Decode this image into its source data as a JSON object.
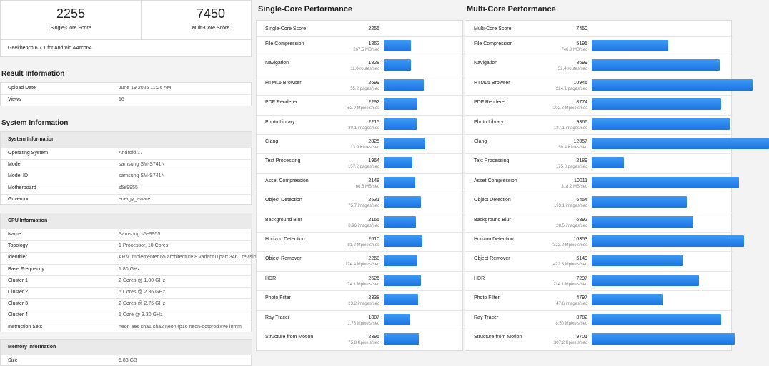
{
  "summary": {
    "single_core_score": 2255,
    "single_core_label": "Single-Core Score",
    "multi_core_score": 7450,
    "multi_core_label": "Multi-Core Score",
    "version": "Geekbench 6.7.1 for Android AArch64"
  },
  "result_information": {
    "title": "Result Information",
    "rows": [
      [
        "Upload Date",
        "June 19 2026 11:26 AM"
      ],
      [
        "Views",
        16
      ]
    ]
  },
  "system_information": {
    "title": "System Information",
    "tables": [
      {
        "title": "System Information",
        "rows": [
          [
            "Operating System",
            "Android 17"
          ],
          [
            "Model",
            "samsung SM-S741N"
          ],
          [
            "Model ID",
            "samsung SM-S741N"
          ],
          [
            "Motherboard",
            "s5e9955"
          ],
          [
            "Governor",
            "energy_aware"
          ]
        ]
      },
      {
        "title": "CPU Information",
        "rows": [
          [
            "Name",
            "Samsung s5e9955"
          ],
          [
            "Topology",
            "1 Processor, 10 Cores"
          ],
          [
            "Identifier",
            "ARM implementer 65 architecture 8 variant 0 part 3461 revision"
          ],
          [
            "Base Frequency",
            "1.80 GHz"
          ],
          [
            "Cluster 1",
            "2 Cores @ 1.80 GHz"
          ],
          [
            "Cluster 2",
            "5 Cores @ 2.36 GHz"
          ],
          [
            "Cluster 3",
            "2 Cores @ 2.75 GHz"
          ],
          [
            "Cluster 4",
            "1 Core @ 3.30 GHz"
          ],
          [
            "Instruction Sets",
            "neon aes sha1 sha2 neon-fp16 neon-dotprod sve i8mm"
          ]
        ]
      },
      {
        "title": "Memory Information",
        "rows": [
          [
            "Size",
            "6.83 GB"
          ]
        ]
      }
    ]
  },
  "single_core": {
    "title": "Single-Core Performance",
    "score_label": "Single-Core Score",
    "score": 2255,
    "tests": [
      {
        "name": "File Compression",
        "score": 1862,
        "rate": "267.5 MB/sec"
      },
      {
        "name": "Navigation",
        "score": 1828,
        "rate": "11.0 routes/sec"
      },
      {
        "name": "HTML5 Browser",
        "score": 2699,
        "rate": "55.2 pages/sec"
      },
      {
        "name": "PDF Renderer",
        "score": 2292,
        "rate": "52.9 Mpixels/sec"
      },
      {
        "name": "Photo Library",
        "score": 2215,
        "rate": "30.1 images/sec"
      },
      {
        "name": "Clang",
        "score": 2825,
        "rate": "13.9 Klines/sec"
      },
      {
        "name": "Text Processing",
        "score": 1964,
        "rate": "157.2 pages/sec"
      },
      {
        "name": "Asset Compression",
        "score": 2148,
        "rate": "66.6 MB/sec"
      },
      {
        "name": "Object Detection",
        "score": 2531,
        "rate": "75.7 images/sec"
      },
      {
        "name": "Background Blur",
        "score": 2165,
        "rate": "8.96 images/sec"
      },
      {
        "name": "Horizon Detection",
        "score": 2610,
        "rate": "81.2 Mpixels/sec"
      },
      {
        "name": "Object Remover",
        "score": 2268,
        "rate": "174.4 Mpixels/sec"
      },
      {
        "name": "HDR",
        "score": 2526,
        "rate": "74.1 Mpixels/sec"
      },
      {
        "name": "Photo Filter",
        "score": 2338,
        "rate": "23.2 images/sec"
      },
      {
        "name": "Ray Tracer",
        "score": 1807,
        "rate": "1.75 Mpixels/sec"
      },
      {
        "name": "Structure from Motion",
        "score": 2395,
        "rate": "75.8 Kpixels/sec"
      }
    ]
  },
  "multi_core": {
    "title": "Multi-Core Performance",
    "score_label": "Multi-Core Score",
    "score": 7450,
    "tests": [
      {
        "name": "File Compression",
        "score": 5195,
        "rate": "746.0 MB/sec"
      },
      {
        "name": "Navigation",
        "score": 8699,
        "rate": "52.4 routes/sec"
      },
      {
        "name": "HTML5 Browser",
        "score": 10946,
        "rate": "224.1 pages/sec"
      },
      {
        "name": "PDF Renderer",
        "score": 8774,
        "rate": "202.3 Mpixels/sec"
      },
      {
        "name": "Photo Library",
        "score": 9366,
        "rate": "127.1 images/sec"
      },
      {
        "name": "Clang",
        "score": 12057,
        "rate": "59.4 Klines/sec"
      },
      {
        "name": "Text Processing",
        "score": 2189,
        "rate": "175.3 pages/sec"
      },
      {
        "name": "Asset Compression",
        "score": 10011,
        "rate": "318.2 MB/sec"
      },
      {
        "name": "Object Detection",
        "score": 6454,
        "rate": "193.1 images/sec"
      },
      {
        "name": "Background Blur",
        "score": 6892,
        "rate": "28.5 images/sec"
      },
      {
        "name": "Horizon Detection",
        "score": 10353,
        "rate": "322.2 Mpixels/sec"
      },
      {
        "name": "Object Remover",
        "score": 6149,
        "rate": "472.8 Mpixels/sec"
      },
      {
        "name": "HDR",
        "score": 7297,
        "rate": "214.1 Mpixels/sec"
      },
      {
        "name": "Photo Filter",
        "score": 4797,
        "rate": "47.6 images/sec"
      },
      {
        "name": "Ray Tracer",
        "score": 8782,
        "rate": "8.50 Mpixels/sec"
      },
      {
        "name": "Structure from Motion",
        "score": 9701,
        "rate": "307.2 Kpixels/sec"
      }
    ]
  }
}
